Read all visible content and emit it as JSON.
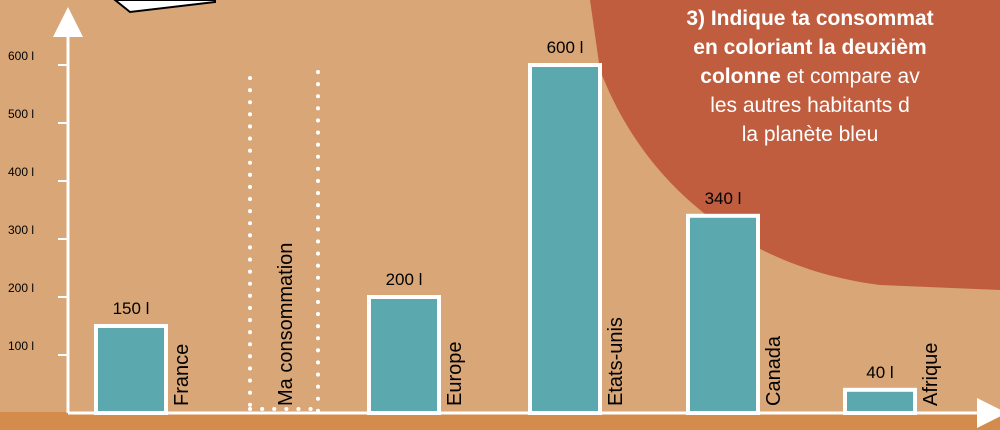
{
  "colors": {
    "background": "#D9A677",
    "band": "#D38C4C",
    "bar_fill": "#5BA9AE",
    "bar_border": "#ffffff",
    "callout": "#C05D3E",
    "text": "#000000"
  },
  "instruction": {
    "line1": "3) Indique ta consommat",
    "line2": "en coloriant la deuxièm",
    "line3_bold": "colonne",
    "line3_rest": " et compare av",
    "line4": "les autres habitants d",
    "line5": "la planète bleu"
  },
  "chart_data": {
    "type": "bar",
    "categories": [
      "France",
      "Ma consommation",
      "Europe",
      "Etats-unis",
      "Canada",
      "Afrique"
    ],
    "values": [
      150,
      null,
      200,
      600,
      340,
      40
    ],
    "value_labels": [
      "150 l",
      "",
      "200 l",
      "600 l",
      "340 l",
      "40 l"
    ],
    "y_ticks": [
      100,
      200,
      300,
      400,
      500,
      600
    ],
    "y_tick_labels": [
      "100 l",
      "200 l",
      "300 l",
      "400 l",
      "500 l",
      "600 l"
    ],
    "ylim": [
      0,
      600
    ],
    "empty_column": "Ma consommation",
    "grid": false
  }
}
